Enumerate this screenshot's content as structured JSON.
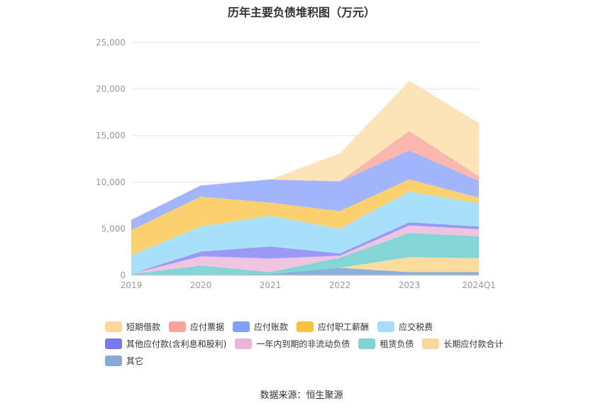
{
  "chart_data": {
    "type": "area",
    "title": "历年主要负债堆积图（万元）",
    "categories": [
      "2019",
      "2020",
      "2021",
      "2022",
      "2023",
      "2024Q1"
    ],
    "ylim": [
      0,
      25000
    ],
    "yticks": [
      "0",
      "5,000",
      "10,000",
      "15,000",
      "20,000",
      "25,000"
    ],
    "grid": true,
    "legend_position": "bottom",
    "series": [
      {
        "name": "其它",
        "color": "#8eaedb",
        "values": [
          0,
          0,
          150,
          800,
          350,
          350
        ]
      },
      {
        "name": "长期应付款合计",
        "color": "#fddca0",
        "values": [
          0,
          0,
          0,
          0,
          1600,
          1500
        ]
      },
      {
        "name": "租赁负债",
        "color": "#84d6d6",
        "values": [
          150,
          1050,
          200,
          1100,
          2600,
          2350
        ]
      },
      {
        "name": "一年内到期的非流动负债",
        "color": "#f0c4e0",
        "values": [
          0,
          1000,
          1450,
          200,
          800,
          750
        ]
      },
      {
        "name": "其他应付款(含利息和股利)",
        "color": "#9a9af5",
        "values": [
          0,
          500,
          1300,
          250,
          350,
          300
        ]
      },
      {
        "name": "应交税费",
        "color": "#a8e0fa",
        "values": [
          2000,
          2700,
          3300,
          2650,
          3300,
          2500
        ]
      },
      {
        "name": "应付职工薪酬",
        "color": "#fbd170",
        "values": [
          2700,
          3200,
          1400,
          1900,
          1300,
          600
        ]
      },
      {
        "name": "应付账款",
        "color": "#a3b6fb",
        "values": [
          1100,
          1200,
          2500,
          3200,
          3100,
          1800
        ]
      },
      {
        "name": "应付票据",
        "color": "#fbb6ae",
        "values": [
          0,
          0,
          0,
          0,
          2100,
          500
        ]
      },
      {
        "name": "短期借款",
        "color": "#fde3b8",
        "values": [
          0,
          0,
          0,
          3000,
          5400,
          5700
        ]
      }
    ]
  },
  "legend": {
    "rows": [
      [
        {
          "label": "短期借款",
          "color": "#fcd79c"
        },
        {
          "label": "应付票据",
          "color": "#f9a49a"
        },
        {
          "label": "应付账款",
          "color": "#7fa0f7"
        },
        {
          "label": "应付职工薪酬",
          "color": "#f8c23e"
        },
        {
          "label": "应交税费",
          "color": "#a6dcf8"
        }
      ],
      [
        {
          "label": "其他应付款(含利息和股利)",
          "color": "#7a78ee"
        },
        {
          "label": "一年内到期的非流动负债",
          "color": "#ebb4d8"
        },
        {
          "label": "租赁负债",
          "color": "#7fd3d3"
        },
        {
          "label": "长期应付款合计",
          "color": "#fcd79c"
        }
      ],
      [
        {
          "label": "其它",
          "color": "#8aa9d6"
        }
      ]
    ]
  },
  "source": "数据来源：恒生聚源"
}
